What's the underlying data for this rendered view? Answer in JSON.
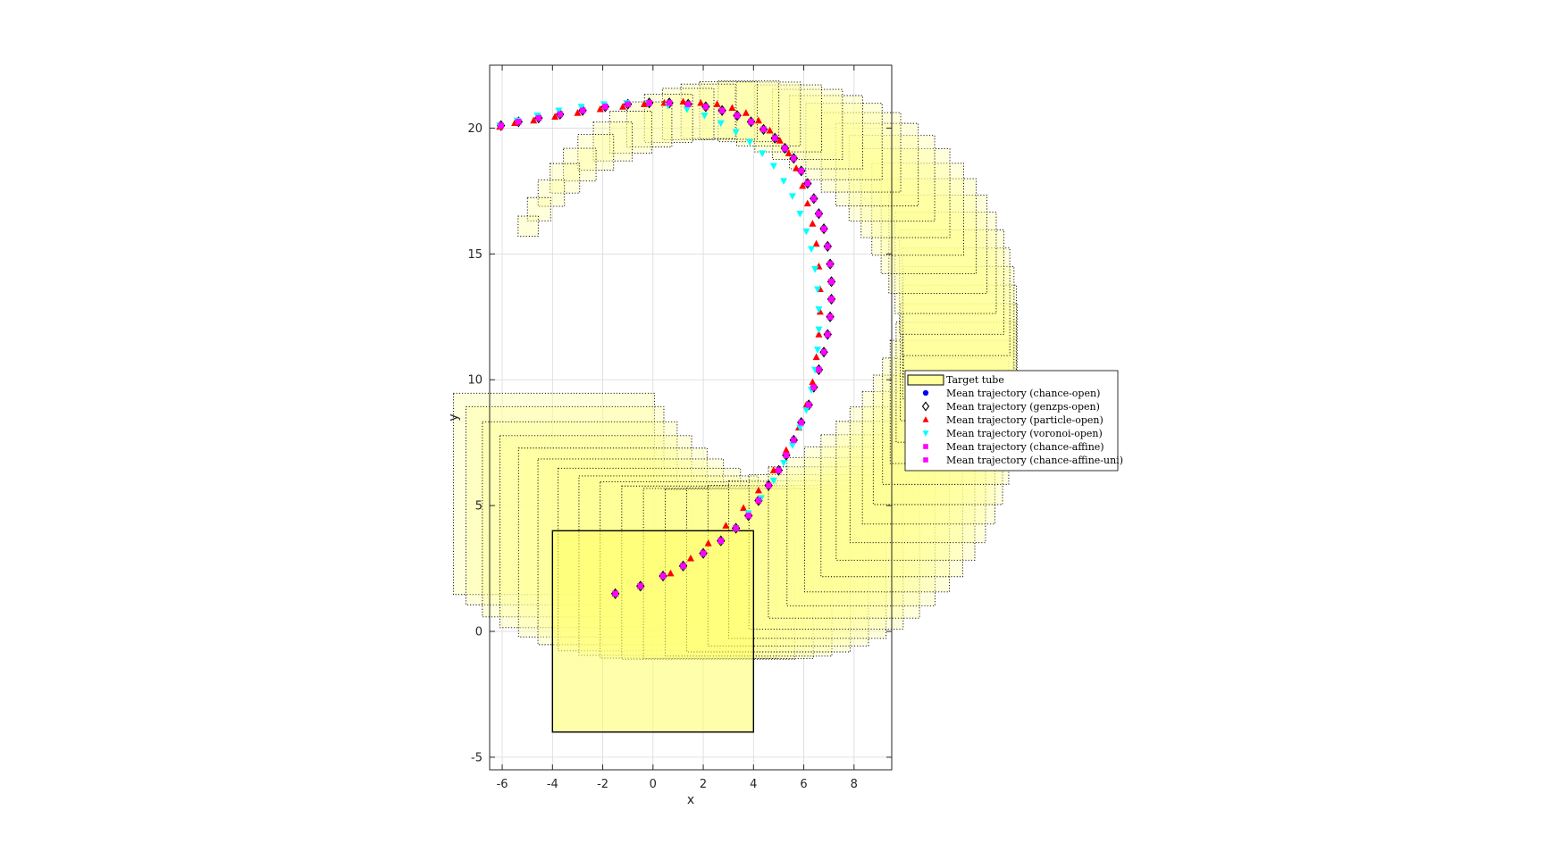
{
  "chart_data": {
    "type": "scatter",
    "xlabel": "x",
    "ylabel": "y",
    "xlim": [
      -6.5,
      9.5
    ],
    "ylim": [
      -5.5,
      22.5
    ],
    "xticks": [
      -6,
      -4,
      -2,
      0,
      2,
      4,
      6,
      8
    ],
    "yticks": [
      -5,
      0,
      5,
      10,
      15,
      20
    ],
    "grid": true,
    "legend_position": "outside-right",
    "target_set": {
      "x": [
        -4,
        4
      ],
      "y": [
        -4,
        4
      ],
      "color": "#ffff66"
    },
    "tube": {
      "name": "Target tube",
      "color": "#ffff99",
      "center": [
        3,
        11.5
      ],
      "radius": 9.2,
      "angles_deg": [
        221,
        225,
        230,
        235,
        240,
        245,
        250,
        255,
        260,
        265,
        270,
        275,
        280,
        285,
        290,
        295,
        300,
        305,
        310,
        315,
        320,
        325,
        330,
        335,
        340,
        345,
        350,
        355,
        0,
        5,
        10,
        15,
        20,
        25,
        30,
        35,
        40,
        45,
        50,
        55,
        60,
        65,
        70,
        75,
        80,
        85,
        90,
        95,
        100,
        105,
        110,
        115,
        120,
        125,
        130,
        135,
        140,
        145,
        150
      ],
      "start_half_width": 4,
      "end_half_width": 0.4
    },
    "series": [
      {
        "name": "Mean trajectory (chance-open)",
        "marker": "circle",
        "color": "#0000ff",
        "x": [
          -1.5,
          -0.5,
          0.4,
          1.2,
          2.0,
          2.7,
          3.3,
          3.8,
          4.2,
          4.6,
          5.0,
          5.3,
          5.6,
          5.9,
          6.2,
          6.4,
          6.6,
          6.8,
          6.95,
          7.05,
          7.1,
          7.1,
          7.05,
          6.95,
          6.8,
          6.6,
          6.4,
          6.15,
          5.9,
          5.6,
          5.25,
          4.85,
          4.4,
          3.9,
          3.35,
          2.75,
          2.1,
          1.4,
          0.65,
          -0.15,
          -1.0,
          -1.9,
          -2.8,
          -3.7,
          -4.55,
          -5.35,
          -6.05
        ],
        "y": [
          1.5,
          1.8,
          2.2,
          2.6,
          3.1,
          3.6,
          4.1,
          4.6,
          5.2,
          5.8,
          6.4,
          7.0,
          7.6,
          8.3,
          9.0,
          9.7,
          10.4,
          11.1,
          11.8,
          12.5,
          13.2,
          13.9,
          14.6,
          15.3,
          16.0,
          16.6,
          17.2,
          17.8,
          18.3,
          18.8,
          19.2,
          19.6,
          19.95,
          20.25,
          20.5,
          20.7,
          20.85,
          20.95,
          21.0,
          21.0,
          20.95,
          20.85,
          20.7,
          20.55,
          20.4,
          20.25,
          20.1
        ]
      },
      {
        "name": "Mean trajectory (genzps-open)",
        "marker": "diamond",
        "color": "#000000",
        "x": [
          -1.5,
          -0.5,
          0.4,
          1.2,
          2.0,
          2.7,
          3.3,
          3.8,
          4.2,
          4.6,
          5.0,
          5.3,
          5.6,
          5.9,
          6.2,
          6.4,
          6.6,
          6.8,
          6.95,
          7.05,
          7.1,
          7.1,
          7.05,
          6.95,
          6.8,
          6.6,
          6.4,
          6.15,
          5.9,
          5.6,
          5.25,
          4.85,
          4.4,
          3.9,
          3.35,
          2.75,
          2.1,
          1.4,
          0.65,
          -0.15,
          -1.0,
          -1.9,
          -2.8,
          -3.7,
          -4.55,
          -5.35,
          -6.05
        ],
        "y": [
          1.5,
          1.8,
          2.2,
          2.6,
          3.1,
          3.6,
          4.1,
          4.6,
          5.2,
          5.8,
          6.4,
          7.0,
          7.6,
          8.3,
          9.0,
          9.7,
          10.4,
          11.1,
          11.8,
          12.5,
          13.2,
          13.9,
          14.6,
          15.3,
          16.0,
          16.6,
          17.2,
          17.8,
          18.3,
          18.8,
          19.2,
          19.6,
          19.95,
          20.25,
          20.5,
          20.7,
          20.85,
          20.95,
          21.0,
          21.0,
          20.95,
          20.85,
          20.7,
          20.55,
          20.4,
          20.25,
          20.1
        ]
      },
      {
        "name": "Mean trajectory (particle-open)",
        "marker": "triangle-up",
        "color": "#ff0000",
        "x": [
          -1.5,
          -0.5,
          0.7,
          1.5,
          2.2,
          2.9,
          3.6,
          4.2,
          4.8,
          5.3,
          5.8,
          6.1,
          6.35,
          6.5,
          6.6,
          6.65,
          6.65,
          6.6,
          6.5,
          6.35,
          6.15,
          5.95,
          5.7,
          5.4,
          5.05,
          4.65,
          4.2,
          3.7,
          3.15,
          2.55,
          1.9,
          1.2,
          0.45,
          -0.35,
          -1.2,
          -2.1,
          -3.0,
          -3.9,
          -4.75,
          -5.5,
          -6.1
        ],
        "y": [
          1.5,
          1.8,
          2.3,
          2.9,
          3.5,
          4.2,
          4.9,
          5.6,
          6.4,
          7.2,
          8.1,
          9.0,
          9.9,
          10.9,
          11.8,
          12.7,
          13.6,
          14.5,
          15.4,
          16.2,
          17.0,
          17.7,
          18.4,
          19.0,
          19.5,
          19.9,
          20.3,
          20.6,
          20.8,
          20.95,
          21.0,
          21.05,
          21.0,
          20.95,
          20.85,
          20.75,
          20.6,
          20.45,
          20.3,
          20.2,
          20.05
        ]
      },
      {
        "name": "Mean trajectory (voronoi-open)",
        "marker": "triangle-down",
        "color": "#00ffff",
        "x": [
          -1.5,
          -0.5,
          0.4,
          1.2,
          2.0,
          2.7,
          3.3,
          3.8,
          4.3,
          4.8,
          5.2,
          5.55,
          5.85,
          6.1,
          6.3,
          6.45,
          6.55,
          6.6,
          6.6,
          6.55,
          6.45,
          6.3,
          6.1,
          5.85,
          5.55,
          5.2,
          4.8,
          4.35,
          3.85,
          3.3,
          2.7,
          2.05,
          1.35,
          0.6,
          -0.2,
          -1.05,
          -1.95,
          -2.85,
          -3.75,
          -4.6,
          -5.4,
          -6.1
        ],
        "y": [
          1.5,
          1.8,
          2.2,
          2.6,
          3.1,
          3.6,
          4.1,
          4.7,
          5.3,
          6.0,
          6.7,
          7.4,
          8.1,
          8.8,
          9.6,
          10.4,
          11.2,
          12.0,
          12.8,
          13.6,
          14.4,
          15.2,
          15.9,
          16.6,
          17.3,
          17.9,
          18.5,
          19.0,
          19.45,
          19.85,
          20.2,
          20.5,
          20.75,
          20.9,
          21.0,
          21.0,
          20.95,
          20.85,
          20.7,
          20.5,
          20.3,
          20.1
        ]
      },
      {
        "name": "Mean trajectory (chance-affine)",
        "marker": "square",
        "color": "#ff00ff",
        "x": [
          -1.5,
          -0.5,
          0.4,
          1.2,
          2.0,
          2.7,
          3.3,
          3.8,
          4.2,
          4.6,
          5.0,
          5.3,
          5.6,
          5.9,
          6.2,
          6.4,
          6.6,
          6.8,
          6.95,
          7.05,
          7.1,
          7.1,
          7.05,
          6.95,
          6.8,
          6.6,
          6.4,
          6.15,
          5.9,
          5.6,
          5.25,
          4.85,
          4.4,
          3.9,
          3.35,
          2.75,
          2.1,
          1.4,
          0.65,
          -0.15,
          -1.0,
          -1.9,
          -2.8,
          -3.7,
          -4.55,
          -5.35,
          -6.05
        ],
        "y": [
          1.5,
          1.8,
          2.2,
          2.6,
          3.1,
          3.6,
          4.1,
          4.6,
          5.2,
          5.8,
          6.4,
          7.0,
          7.6,
          8.3,
          9.0,
          9.7,
          10.4,
          11.1,
          11.8,
          12.5,
          13.2,
          13.9,
          14.6,
          15.3,
          16.0,
          16.6,
          17.2,
          17.8,
          18.3,
          18.8,
          19.2,
          19.6,
          19.95,
          20.25,
          20.5,
          20.7,
          20.85,
          20.95,
          21.0,
          21.0,
          20.95,
          20.85,
          20.7,
          20.55,
          20.4,
          20.25,
          20.1
        ]
      },
      {
        "name": "Mean trajectory (chance-affine-uni)",
        "marker": "square",
        "color": "#ff00ff",
        "x": [
          -1.5,
          -0.5,
          0.4,
          1.2,
          2.0,
          2.7,
          3.3,
          3.8,
          4.2,
          4.6,
          5.0,
          5.3,
          5.6,
          5.9,
          6.2,
          6.4,
          6.6,
          6.8,
          6.95,
          7.05,
          7.1,
          7.1,
          7.05,
          6.95,
          6.8,
          6.6,
          6.4,
          6.15,
          5.9,
          5.6,
          5.25,
          4.85,
          4.4,
          3.9,
          3.35,
          2.75,
          2.1,
          1.4,
          0.65,
          -0.15,
          -1.0,
          -1.9,
          -2.8,
          -3.7,
          -4.55,
          -5.35,
          -6.05
        ],
        "y": [
          1.5,
          1.8,
          2.2,
          2.6,
          3.1,
          3.6,
          4.1,
          4.6,
          5.2,
          5.8,
          6.4,
          7.0,
          7.6,
          8.3,
          9.0,
          9.7,
          10.4,
          11.1,
          11.8,
          12.5,
          13.2,
          13.9,
          14.6,
          15.3,
          16.0,
          16.6,
          17.2,
          17.8,
          18.3,
          18.8,
          19.2,
          19.6,
          19.95,
          20.25,
          20.5,
          20.7,
          20.85,
          20.95,
          21.0,
          21.0,
          20.95,
          20.85,
          20.7,
          20.55,
          20.4,
          20.25,
          20.1
        ]
      }
    ]
  }
}
